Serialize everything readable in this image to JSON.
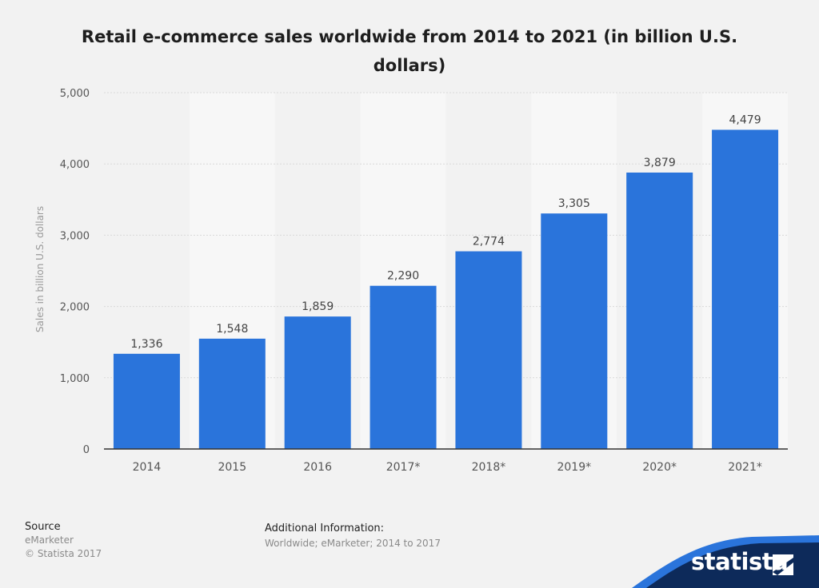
{
  "chart_data": {
    "type": "bar",
    "title": "Retail e-commerce sales worldwide from 2014 to 2021 (in billion U.S. dollars)",
    "xlabel": "",
    "ylabel": "Sales in billion U.S. dollars",
    "categories": [
      "2014",
      "2015",
      "2016",
      "2017*",
      "2018*",
      "2019*",
      "2020*",
      "2021*"
    ],
    "values": [
      1336,
      1548,
      1859,
      2290,
      2774,
      3305,
      3879,
      4479
    ],
    "value_labels": [
      "1,336",
      "1,548",
      "1,859",
      "2,290",
      "2,774",
      "3,305",
      "3,879",
      "4,479"
    ],
    "ylim": [
      0,
      5000
    ],
    "yticks": [
      0,
      1000,
      2000,
      3000,
      4000,
      5000
    ],
    "ytick_labels": [
      "0",
      "1,000",
      "2,000",
      "3,000",
      "4,000",
      "5,000"
    ],
    "grid": true,
    "bar_color": "#2a74db"
  },
  "footer": {
    "source_heading": "Source",
    "source_name": "eMarketer",
    "copyright": "© Statista 2017",
    "additional_heading": "Additional Information:",
    "additional_text": "Worldwide; eMarketer; 2014 to 2017"
  },
  "brand": {
    "name": "statista",
    "band_color": "#0d2a5a",
    "accent_color": "#2a74db"
  }
}
